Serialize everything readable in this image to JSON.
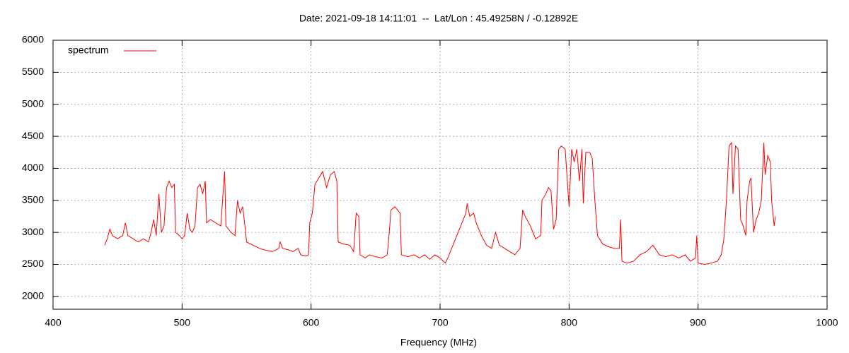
{
  "chart_data": {
    "type": "line",
    "title": "Date: 2021-09-18 14:11:01  --  Lat/Lon : 45.49258N / -0.12892E",
    "x_label": "Frequency (MHz)",
    "x": [
      440,
      442,
      444,
      446,
      450,
      454,
      456,
      458,
      462,
      466,
      470,
      474,
      476,
      478,
      480,
      482,
      484,
      486,
      488,
      490,
      492,
      494,
      495,
      498,
      500,
      502,
      504,
      506,
      508,
      510,
      512,
      514,
      516,
      518,
      519,
      522,
      526,
      530,
      533,
      534,
      538,
      541,
      543,
      545,
      547,
      549,
      550,
      555,
      560,
      565,
      570,
      575,
      576,
      578,
      582,
      586,
      590,
      592,
      596,
      598,
      599,
      601,
      603,
      606,
      609,
      612,
      615,
      618,
      620,
      621,
      625,
      630,
      633,
      635,
      637,
      638,
      642,
      645,
      650,
      655,
      659,
      660,
      662,
      665,
      667,
      669,
      670,
      675,
      680,
      684,
      688,
      692,
      696,
      700,
      704,
      706,
      710,
      714,
      718,
      720,
      721,
      723,
      726,
      728,
      732,
      736,
      740,
      743,
      746,
      750,
      754,
      758,
      760,
      762,
      764,
      766,
      770,
      774,
      778,
      779,
      782,
      784,
      786,
      788,
      790,
      792,
      794,
      797,
      800,
      802,
      804,
      806,
      808,
      810,
      811,
      813,
      816,
      818,
      820,
      822,
      826,
      830,
      835,
      839,
      840,
      841,
      845,
      850,
      855,
      860,
      865,
      870,
      875,
      880,
      885,
      890,
      894,
      898,
      899,
      900,
      905,
      910,
      915,
      918,
      920,
      922,
      924,
      926,
      927,
      929,
      931,
      933,
      935,
      937,
      938,
      940,
      941,
      943,
      945,
      947,
      949,
      951,
      952,
      954,
      956,
      957,
      958,
      959,
      960
    ],
    "series": [
      {
        "name": "spectrum",
        "color": "#ff0000",
        "values": [
          2800,
          2900,
          3050,
          2950,
          2900,
          2950,
          3150,
          2950,
          2900,
          2850,
          2900,
          2850,
          3000,
          3200,
          2950,
          3600,
          3000,
          3100,
          3700,
          3800,
          3700,
          3750,
          3000,
          2950,
          2900,
          2950,
          3300,
          3050,
          3000,
          3100,
          3700,
          3750,
          3600,
          3800,
          3150,
          3200,
          3150,
          3100,
          3950,
          3100,
          3000,
          2950,
          3500,
          3300,
          3400,
          3050,
          2850,
          2800,
          2750,
          2720,
          2700,
          2750,
          2850,
          2750,
          2730,
          2700,
          2750,
          2650,
          2630,
          2650,
          3150,
          3300,
          3750,
          3850,
          3950,
          3700,
          3900,
          3950,
          3800,
          2850,
          2820,
          2800,
          2700,
          3300,
          3250,
          2650,
          2600,
          2650,
          2620,
          2600,
          2650,
          2850,
          3350,
          3400,
          3350,
          3300,
          2650,
          2620,
          2650,
          2600,
          2650,
          2580,
          2650,
          2600,
          2520,
          2600,
          2800,
          3000,
          3200,
          3300,
          3450,
          3250,
          3300,
          3150,
          2950,
          2800,
          2750,
          3000,
          2800,
          2750,
          2700,
          2650,
          2700,
          2750,
          3350,
          3250,
          3100,
          2900,
          2950,
          3500,
          3600,
          3700,
          3650,
          3050,
          3200,
          4300,
          4350,
          4300,
          3400,
          4300,
          4100,
          4300,
          3800,
          4300,
          3450,
          4250,
          4250,
          4150,
          3500,
          2950,
          2820,
          2780,
          2750,
          2750,
          3200,
          2550,
          2520,
          2550,
          2650,
          2700,
          2800,
          2650,
          2620,
          2650,
          2600,
          2650,
          2550,
          2600,
          2950,
          2520,
          2500,
          2520,
          2550,
          2650,
          2900,
          3500,
          4350,
          4400,
          3600,
          4350,
          4300,
          3200,
          3100,
          2950,
          3500,
          3800,
          3850,
          3000,
          3200,
          3300,
          3500,
          4400,
          3900,
          4200,
          4100,
          3500,
          3300,
          3100,
          3250
        ]
      }
    ],
    "xlim": [
      400,
      1000
    ],
    "xticks": [
      400,
      500,
      600,
      700,
      800,
      900,
      1000
    ],
    "ylim": [
      1800,
      6000
    ],
    "yticks": [
      2000,
      2500,
      3000,
      3500,
      4000,
      4500,
      5000,
      5500,
      6000
    ],
    "grid": true,
    "legend": "top-left"
  }
}
